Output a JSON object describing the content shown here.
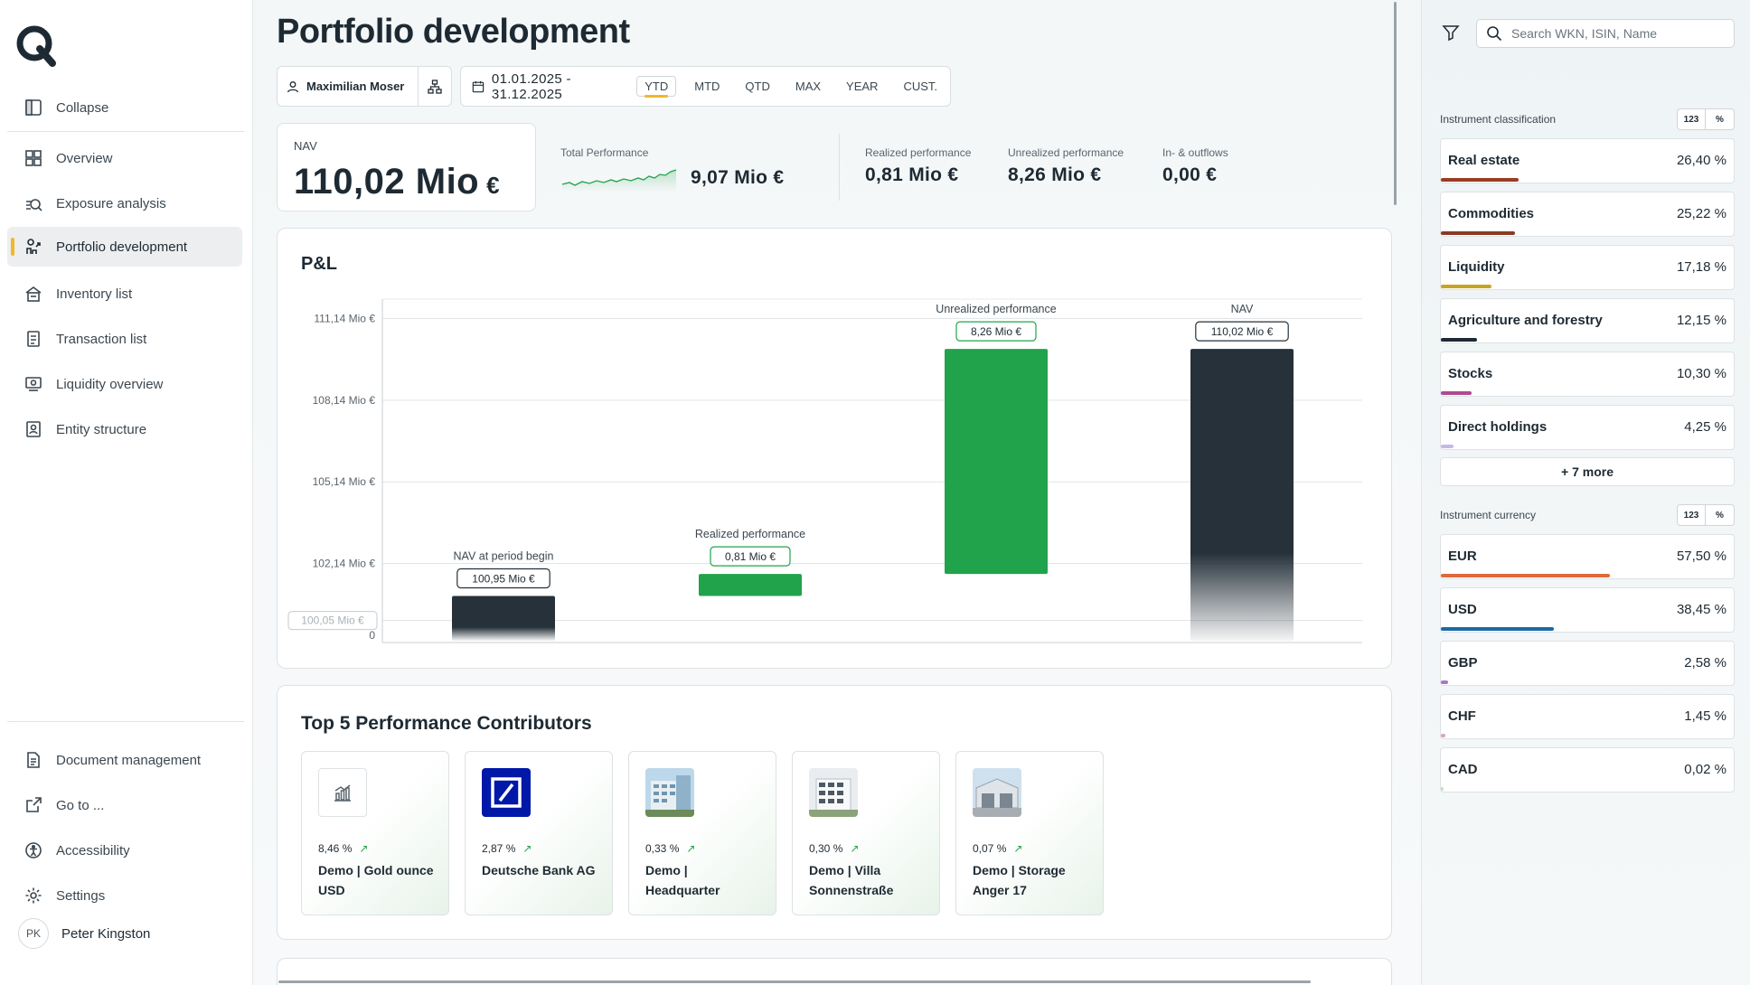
{
  "sidebar": {
    "collapse": "Collapse",
    "nav": [
      "Overview",
      "Exposure analysis",
      "Portfolio development",
      "Inventory list",
      "Transaction list",
      "Liquidity overview",
      "Entity structure"
    ],
    "bottom": [
      "Document management",
      "Go to ...",
      "Accessibility",
      "Settings"
    ],
    "user": {
      "initials": "PK",
      "name": "Peter Kingston"
    }
  },
  "header": {
    "title": "Portfolio development",
    "user": "Maximilian Moser",
    "date_range": "01.01.2025 - 31.12.2025",
    "periods": [
      "YTD",
      "MTD",
      "QTD",
      "MAX",
      "YEAR",
      "CUST."
    ],
    "selected_period": "YTD"
  },
  "nav_card": {
    "label": "NAV",
    "value": "110,02 Mio",
    "currency": "€"
  },
  "kpis": {
    "total": {
      "label": "Total Performance",
      "value": "9,07 Mio  €"
    },
    "realized": {
      "label": "Realized performance",
      "value": "0,81 Mio  €"
    },
    "unrealized": {
      "label": "Unrealized performance",
      "value": "8,26 Mio  €"
    },
    "flows": {
      "label": "In- & outflows",
      "value": "0,00  €"
    }
  },
  "colors": {
    "accent": "#f0b92a",
    "positive": "#21a34b",
    "dark": "#26313a"
  },
  "chart_data": {
    "type": "bar",
    "title": "P&L",
    "categories": [
      "NAV at period begin",
      "Realized performance",
      "Unrealized performance",
      "NAV"
    ],
    "values": [
      100.95,
      0.81,
      8.26,
      110.02
    ],
    "value_labels": [
      "100,95 Mio €",
      "0,81 Mio €",
      "8,26 Mio €",
      "110,02 Mio €"
    ],
    "waterfall": true,
    "y_ticks": [
      "111,14 Mio €",
      "108,14 Mio €",
      "105,14 Mio €",
      "102,14 Mio €",
      "100,05 Mio €",
      "0"
    ],
    "ylim": [
      99.64,
      111.85
    ],
    "unit": "Mio €",
    "grid": true
  },
  "top5": {
    "title": "Top 5 Performance Contributors",
    "items": [
      {
        "pct": "8,46 %",
        "name": "Demo | Gold ounce USD",
        "icon": "chart-icon"
      },
      {
        "pct": "2,87 %",
        "name": "Deutsche Bank AG",
        "icon": "deutsche-bank-logo"
      },
      {
        "pct": "0,33 %",
        "name": "Demo | Headquarter",
        "icon": "building-photo"
      },
      {
        "pct": "0,30 %",
        "name": "Demo | Villa Sonnenstraße",
        "icon": "villa-photo"
      },
      {
        "pct": "0,07 %",
        "name": "Demo | Storage Anger 17",
        "icon": "storage-photo"
      }
    ]
  },
  "right": {
    "search_placeholder": "Search WKN, ISIN, Name",
    "classification": {
      "label": "Instrument classification",
      "rows": [
        {
          "name": "Real estate",
          "pct": "26,40 %",
          "value": 26.4,
          "color": "#9b3b22"
        },
        {
          "name": "Commodities",
          "pct": "25,22 %",
          "value": 25.22,
          "color": "#8a3a23"
        },
        {
          "name": "Liquidity",
          "pct": "17,18 %",
          "value": 17.18,
          "color": "#c9a421"
        },
        {
          "name": "Agriculture and forestry",
          "pct": "12,15 %",
          "value": 12.15,
          "color": "#1e2a33"
        },
        {
          "name": "Stocks",
          "pct": "10,30 %",
          "value": 10.3,
          "color": "#b0498f"
        },
        {
          "name": "Direct holdings",
          "pct": "4,25 %",
          "value": 4.25,
          "color": "#c7b8e6"
        }
      ],
      "more": "+ 7 more"
    },
    "currency": {
      "label": "Instrument currency",
      "rows": [
        {
          "name": "EUR",
          "pct": "57,50 %",
          "value": 57.5,
          "color": "#e0683a"
        },
        {
          "name": "USD",
          "pct": "38,45 %",
          "value": 38.45,
          "color": "#1a6aa3"
        },
        {
          "name": "GBP",
          "pct": "2,58 %",
          "value": 2.58,
          "color": "#a678c9"
        },
        {
          "name": "CHF",
          "pct": "1,45 %",
          "value": 1.45,
          "color": "#d9a4c4"
        },
        {
          "name": "CAD",
          "pct": "0,02 %",
          "value": 0.02,
          "color": "#c8e0c0"
        }
      ]
    }
  }
}
